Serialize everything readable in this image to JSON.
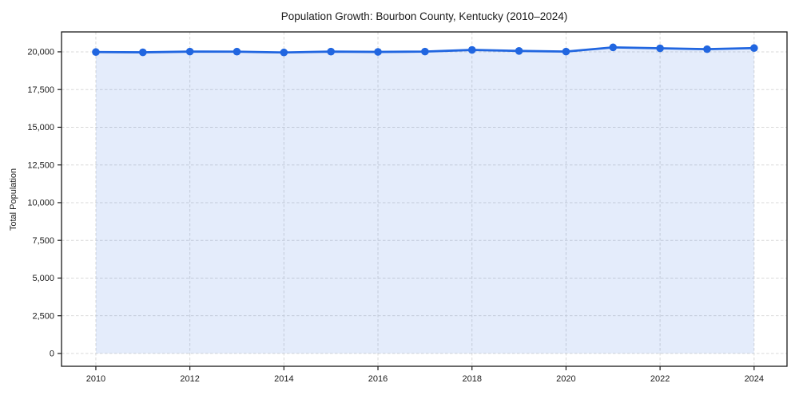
{
  "title": "Population Growth: Bourbon County, Kentucky (2010–2024)",
  "chart_data": {
    "type": "line",
    "title": "Population Growth: Bourbon County, Kentucky (2010–2024)",
    "xlabel": "",
    "ylabel": "Total Population",
    "x": [
      2010,
      2011,
      2012,
      2013,
      2014,
      2015,
      2016,
      2017,
      2018,
      2019,
      2020,
      2021,
      2022,
      2023,
      2024
    ],
    "series": [
      {
        "name": "Total Population",
        "values": [
          19985,
          19967,
          20015,
          20012,
          19959,
          20013,
          19995,
          20017,
          20127,
          20060,
          20016,
          20296,
          20234,
          20176,
          20250
        ]
      }
    ],
    "xticks": {
      "values": [
        2010,
        2012,
        2014,
        2016,
        2018,
        2020,
        2022,
        2024
      ],
      "labels": [
        "2010",
        "2012",
        "2014",
        "2016",
        "2018",
        "2020",
        "2022",
        "2024"
      ]
    },
    "yticks": {
      "values": [
        0,
        2500,
        5000,
        7500,
        10000,
        12500,
        15000,
        17500,
        20000
      ],
      "labels": [
        "0",
        "2,500",
        "5,000",
        "7,500",
        "10,000",
        "12,500",
        "15,000",
        "17,500",
        "20,000"
      ]
    },
    "xlim": [
      2009.27,
      2024.7
    ],
    "ylim": [
      -850,
      21320
    ],
    "grid": true,
    "grid_style": "dashed",
    "legend": "none",
    "fill_to_zero": true,
    "marker": "circle",
    "colors": {
      "line": "#2166e0",
      "fill": "#2166e0",
      "fill_opacity": 0.12,
      "grid": "#d9d9d9",
      "spine": "#1a1a1a",
      "text": "#1a1a1a"
    }
  }
}
